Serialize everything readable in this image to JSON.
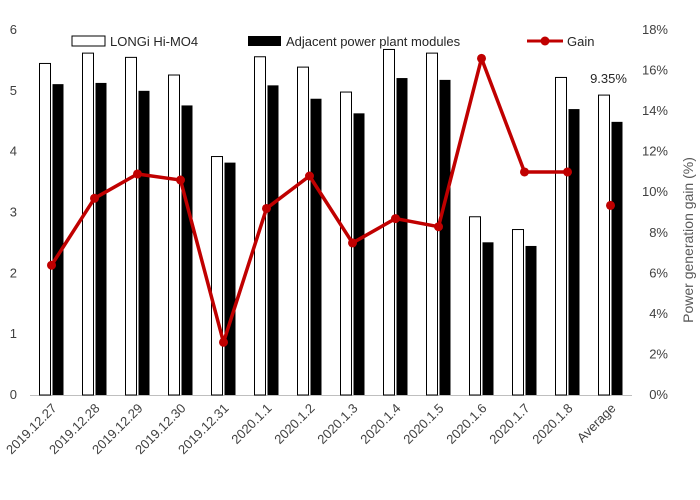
{
  "chart_data": {
    "type": "bar",
    "categories": [
      "2019.12.27",
      "2019.12.28",
      "2019.12.29",
      "2019.12.30",
      "2019.12.31",
      "2020.1.1",
      "2020.1.2",
      "2020.1.3",
      "2020.1.4",
      "2020.1.5",
      "2020.1.6",
      "2020.1.7",
      "2020.1.8",
      "Average"
    ],
    "series": [
      {
        "name": "LONGi Hi-MO4",
        "kind": "bar",
        "axis": "left",
        "color": "#ffffff",
        "stroke": "#000000",
        "values": [
          5.45,
          5.62,
          5.55,
          5.26,
          3.92,
          5.56,
          5.39,
          4.98,
          5.68,
          5.62,
          2.93,
          2.72,
          5.22,
          4.93
        ]
      },
      {
        "name": "Adjacent power plant modules",
        "kind": "bar",
        "axis": "left",
        "color": "#000000",
        "values": [
          5.11,
          5.13,
          5.0,
          4.76,
          3.82,
          5.09,
          4.87,
          4.63,
          5.21,
          5.18,
          2.51,
          2.45,
          4.7,
          4.49
        ]
      },
      {
        "name": "Gain",
        "kind": "line",
        "axis": "right",
        "color": "#c00000",
        "values": [
          6.4,
          9.7,
          10.9,
          10.6,
          2.6,
          9.2,
          10.8,
          7.5,
          8.7,
          8.3,
          16.6,
          11.0,
          11.0,
          9.35
        ]
      }
    ],
    "left_axis": {
      "min": 0,
      "max": 6,
      "ticks": [
        0,
        1,
        2,
        3,
        4,
        5,
        6
      ],
      "label": ""
    },
    "right_axis": {
      "min": 0,
      "max": 18,
      "ticks": [
        "0%",
        "2%",
        "4%",
        "6%",
        "8%",
        "10%",
        "12%",
        "14%",
        "16%",
        "18%"
      ],
      "label": "Power generation gain (%)"
    },
    "annotations": [
      {
        "category": "Average",
        "text": "9.35%"
      }
    ],
    "legend": {
      "position": "top",
      "entries": [
        "LONGi Hi-MO4",
        "Adjacent power plant modules",
        "Gain"
      ]
    },
    "grid": false,
    "line_last_point_disconnected": true
  }
}
